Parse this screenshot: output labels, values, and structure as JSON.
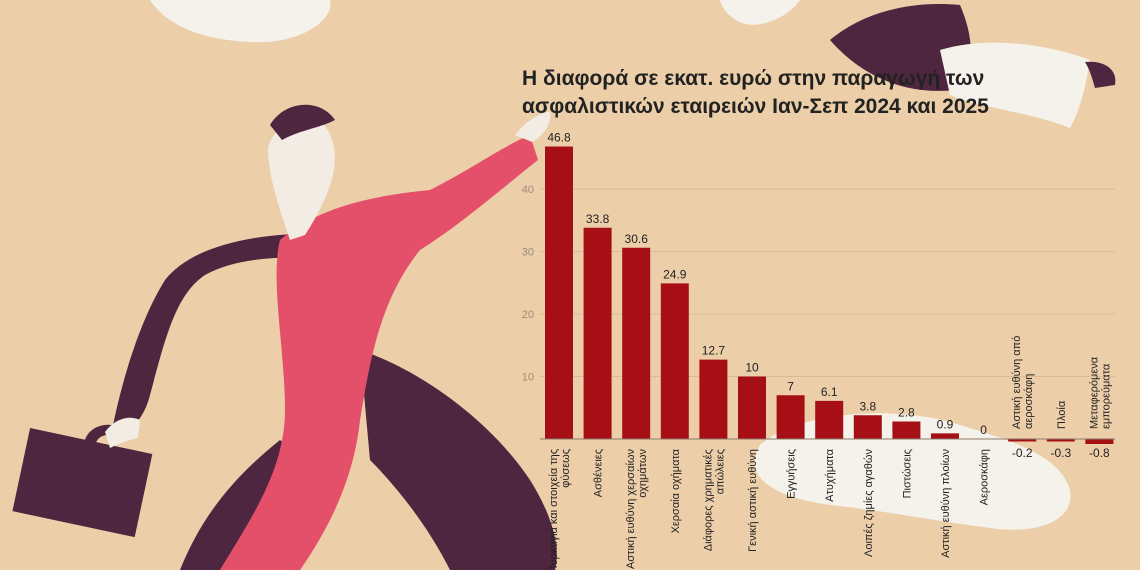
{
  "chart_data": {
    "type": "bar",
    "title": "Η διαφορά σε εκατ. ευρώ στην παραγωγή των ασφαλιστικών εταιρειών Ιαν-Σεπ 2024 και 2025",
    "title_lines": [
      "Η διαφορά σε εκατ. ευρώ στην παραγωγή των",
      "ασφαλιστικών εταιρειών Ιαν-Σεπ 2024 και 2025"
    ],
    "categories": [
      [
        "Πυρκαγιά και στοιχεία της",
        "φύσεως"
      ],
      [
        "Ασθένειες"
      ],
      [
        "Αστική ευθύνη χερσαίων",
        "οχημάτων"
      ],
      [
        "Χερσαία οχήματα"
      ],
      [
        "Διάφορες χρηματικές",
        "απώλειες"
      ],
      [
        "Γενική αστική ευθύνη"
      ],
      [
        "Εγγυήσεις"
      ],
      [
        "Ατυχήματα"
      ],
      [
        "Λοιπές ζημίες αγαθών"
      ],
      [
        "Πιστώσεις"
      ],
      [
        "Αστική ευθύνη πλοίων"
      ],
      [
        "Αεροσκάφη"
      ],
      [
        "Αστική ευθύνη από",
        "αεροσκάφη"
      ],
      [
        "Πλοία"
      ],
      [
        "Μεταφερόμενα",
        "εμπορεύματα"
      ]
    ],
    "values": [
      46.8,
      33.8,
      30.6,
      24.9,
      12.7,
      10,
      7,
      6.1,
      3.8,
      2.8,
      0.9,
      0,
      -0.2,
      -0.3,
      -0.8
    ],
    "value_labels": [
      "46.8",
      "33.8",
      "30.6",
      "24.9",
      "12.7",
      "10",
      "7",
      "6.1",
      "3.8",
      "2.8",
      "0.9",
      "0",
      "-0.2",
      "-0.3",
      "-0.8"
    ],
    "yticks": [
      10,
      20,
      30,
      40
    ],
    "ylim": [
      0,
      50
    ],
    "grid": true,
    "colors": {
      "bar": "#a50f15",
      "grid": "#d9bc97",
      "axis": "#8a7a66",
      "text": "#222222"
    }
  },
  "illustration": {
    "colors": {
      "background": "#eccfa9",
      "dress": "#e4506a",
      "arm": "#4e2640",
      "paper": "#f5f2ec",
      "skin": "#f3ece4",
      "hair": "#4e2640"
    }
  }
}
